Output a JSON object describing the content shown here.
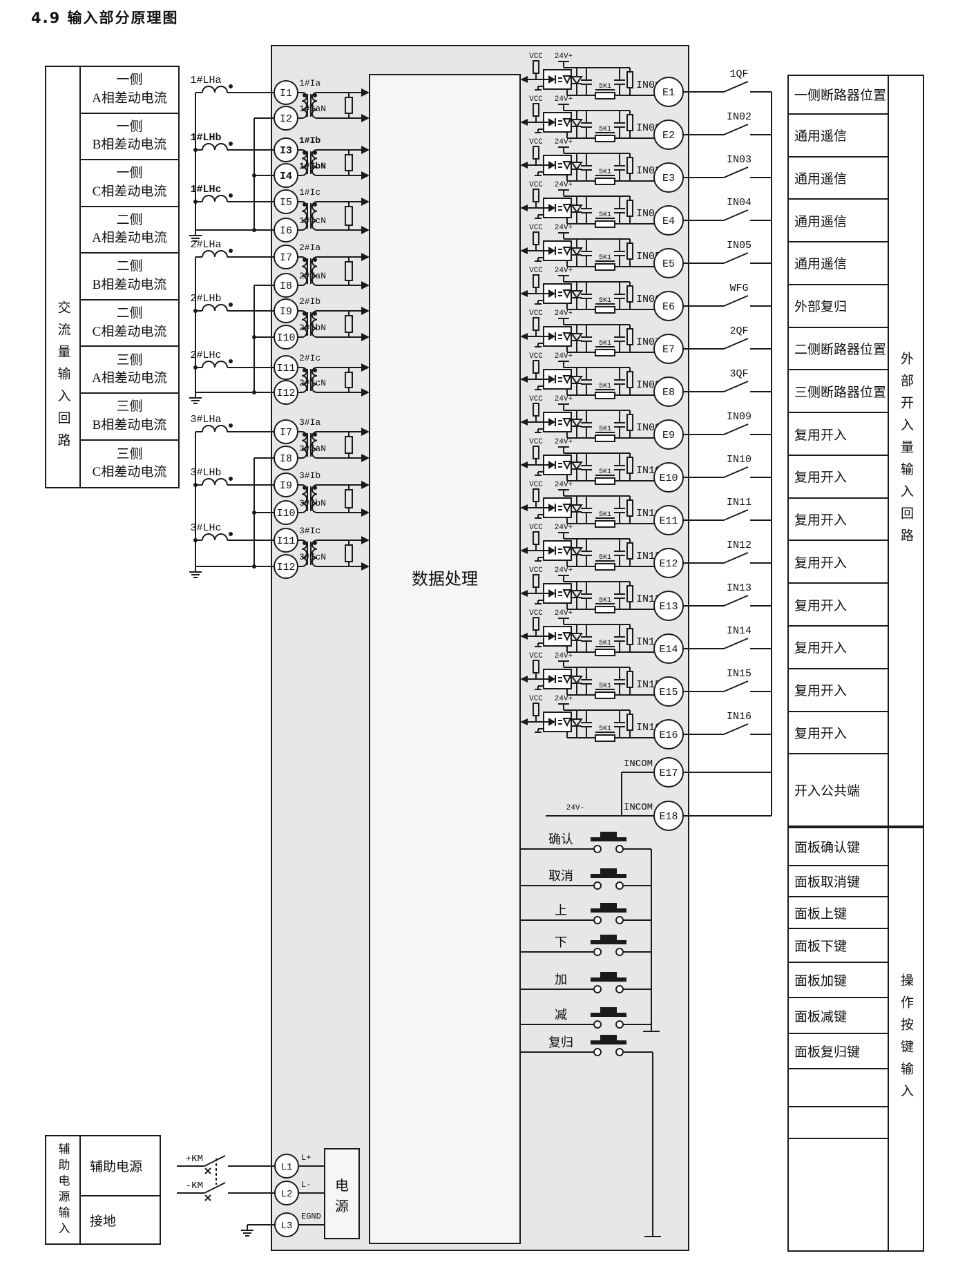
{
  "title": "4.9 输入部分原理图",
  "colors": {
    "module_bg": "#e7e7e7",
    "inner_bg": "#f6f6f6",
    "line": "#1a1a1a"
  },
  "left_table": {
    "vertical_label": "交流量输入回路",
    "rows": [
      {
        "line1": "一侧",
        "line2": "A相差动电流"
      },
      {
        "line1": "一侧",
        "line2": "B相差动电流"
      },
      {
        "line1": "一侧",
        "line2": "C相差动电流"
      },
      {
        "line1": "二侧",
        "line2": "A相差动电流"
      },
      {
        "line1": "二侧",
        "line2": "B相差动电流"
      },
      {
        "line1": "二侧",
        "line2": "C相差动电流"
      },
      {
        "line1": "三侧",
        "line2": "A相差动电流"
      },
      {
        "line1": "三侧",
        "line2": "B相差动电流"
      },
      {
        "line1": "三侧",
        "line2": "C相差动电流"
      }
    ]
  },
  "ct_groups": [
    {
      "cts": [
        {
          "label": "1#LHa",
          "bold": false
        },
        {
          "label": "1#LHb",
          "bold": true
        },
        {
          "label": "1#LHc",
          "bold": true
        }
      ],
      "terminals": [
        {
          "name": "I1",
          "tag": "1#Ia",
          "bold": false
        },
        {
          "name": "I2",
          "tag": "1#IaN",
          "bold": false
        },
        {
          "name": "I3",
          "tag": "1#Ib",
          "bold": true
        },
        {
          "name": "I4",
          "tag": "1#IbN",
          "bold": true
        },
        {
          "name": "I5",
          "tag": "1#Ic",
          "bold": false
        },
        {
          "name": "I6",
          "tag": "1#IcN",
          "bold": false
        }
      ]
    },
    {
      "cts": [
        {
          "label": "2#LHa",
          "bold": false
        },
        {
          "label": "2#LHb",
          "bold": false
        },
        {
          "label": "2#LHc",
          "bold": false
        }
      ],
      "terminals": [
        {
          "name": "I7",
          "tag": "2#Ia",
          "bold": false
        },
        {
          "name": "I8",
          "tag": "2#IaN",
          "bold": false
        },
        {
          "name": "I9",
          "tag": "2#Ib",
          "bold": false
        },
        {
          "name": "I10",
          "tag": "2#IbN",
          "bold": false
        },
        {
          "name": "I11",
          "tag": "2#Ic",
          "bold": false
        },
        {
          "name": "I12",
          "tag": "2#IcN",
          "bold": false
        }
      ]
    },
    {
      "cts": [
        {
          "label": "3#LHa",
          "bold": false
        },
        {
          "label": "3#LHb",
          "bold": false
        },
        {
          "label": "3#LHc",
          "bold": false
        }
      ],
      "terminals": [
        {
          "name": "I7",
          "tag": "3#Ia",
          "bold": false
        },
        {
          "name": "I8",
          "tag": "3#IaN",
          "bold": false
        },
        {
          "name": "I9",
          "tag": "3#Ib",
          "bold": false
        },
        {
          "name": "I10",
          "tag": "3#IbN",
          "bold": false
        },
        {
          "name": "I11",
          "tag": "3#Ic",
          "bold": false
        },
        {
          "name": "I12",
          "tag": "3#IcN",
          "bold": false
        }
      ]
    }
  ],
  "processor_label": "数据处理",
  "power_box_label": "电源",
  "channel_labels": {
    "vcc": "VCC",
    "rail": "24V+",
    "resistor": "5K1"
  },
  "channels": [
    {
      "in_label": "IN01",
      "terminal": "E1",
      "switch_label": "1QF"
    },
    {
      "in_label": "IN02",
      "terminal": "E2",
      "switch_label": "IN02"
    },
    {
      "in_label": "IN03",
      "terminal": "E3",
      "switch_label": "IN03"
    },
    {
      "in_label": "IN04",
      "terminal": "E4",
      "switch_label": "IN04"
    },
    {
      "in_label": "IN05",
      "terminal": "E5",
      "switch_label": "IN05"
    },
    {
      "in_label": "IN06",
      "terminal": "E6",
      "switch_label": "WFG"
    },
    {
      "in_label": "IN07",
      "terminal": "E7",
      "switch_label": "2QF"
    },
    {
      "in_label": "IN08",
      "terminal": "E8",
      "switch_label": "3QF"
    },
    {
      "in_label": "IN09",
      "terminal": "E9",
      "switch_label": "IN09"
    },
    {
      "in_label": "IN10",
      "terminal": "E10",
      "switch_label": "IN10"
    },
    {
      "in_label": "IN11",
      "terminal": "E11",
      "switch_label": "IN11"
    },
    {
      "in_label": "IN12",
      "terminal": "E12",
      "switch_label": "IN12"
    },
    {
      "in_label": "IN13",
      "terminal": "E13",
      "switch_label": "IN13"
    },
    {
      "in_label": "IN14",
      "terminal": "E14",
      "switch_label": "IN14"
    },
    {
      "in_label": "IN15",
      "terminal": "E15",
      "switch_label": "IN15"
    },
    {
      "in_label": "IN16",
      "terminal": "E16",
      "switch_label": "IN16"
    }
  ],
  "common_terminals": {
    "label": "INCOM",
    "e17": "E17",
    "e18": "E18",
    "neg_rail": "24V-"
  },
  "right_table_top": {
    "vertical_label": "外部开入量输入回路",
    "rows": [
      "一侧断路器位置",
      "通用遥信",
      "通用遥信",
      "通用遥信",
      "通用遥信",
      "外部复归",
      "二侧断路器位置",
      "三侧断路器位置",
      "复用开入",
      "复用开入",
      "复用开入",
      "复用开入",
      "复用开入",
      "复用开入",
      "复用开入",
      "复用开入",
      "开入公共端"
    ]
  },
  "buttons": [
    "确认",
    "取消",
    "上",
    "下",
    "加",
    "减",
    "复归"
  ],
  "right_table_bottom": {
    "vertical_label": "操作按键输入",
    "rows": [
      "面板确认键",
      "面板取消键",
      "面板上键",
      "面板下键",
      "面板加键",
      "面板减键",
      "面板复归键",
      "",
      "",
      ""
    ]
  },
  "aux_power": {
    "vertical_label": "辅助电源输入",
    "rows": [
      "辅助电源",
      "接地"
    ],
    "switches": [
      "+KM",
      "-KM"
    ],
    "terminals": [
      {
        "name": "L1",
        "tag": "L+"
      },
      {
        "name": "L2",
        "tag": "L-"
      },
      {
        "name": "L3",
        "tag": "EGND"
      }
    ]
  }
}
